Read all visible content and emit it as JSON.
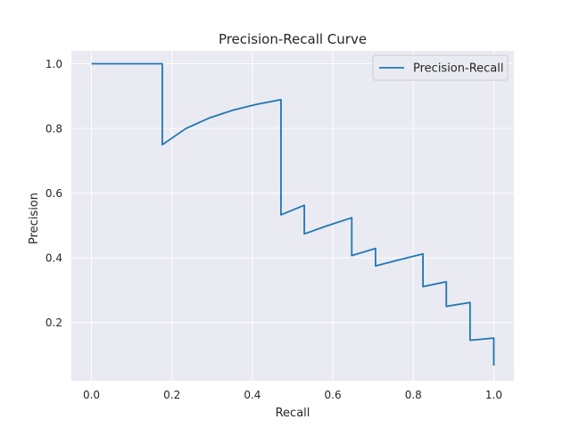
{
  "chart_data": {
    "type": "line",
    "title": "Precision-Recall Curve",
    "xlabel": "Recall",
    "ylabel": "Precision",
    "xlim": [
      -0.05,
      1.05
    ],
    "ylim": [
      0.02,
      1.04
    ],
    "xticks": [
      0.0,
      0.2,
      0.4,
      0.6,
      0.8,
      1.0
    ],
    "xtick_labels": [
      "0.0",
      "0.2",
      "0.4",
      "0.6",
      "0.8",
      "1.0"
    ],
    "yticks": [
      0.2,
      0.4,
      0.6,
      0.8,
      1.0
    ],
    "ytick_labels": [
      "0.2",
      "0.4",
      "0.6",
      "0.8",
      "1.0"
    ],
    "grid": true,
    "legend": "upper-right",
    "colors": {
      "plot_background": "#eaeaf2",
      "grid": "#ffffff",
      "line": "#1f77b4"
    },
    "series": [
      {
        "name": "Precision-Recall",
        "x": [
          0.0,
          0.176,
          0.176,
          0.235,
          0.294,
          0.353,
          0.412,
          0.471,
          0.471,
          0.529,
          0.529,
          0.588,
          0.647,
          0.647,
          0.706,
          0.706,
          0.765,
          0.824,
          0.824,
          0.882,
          0.882,
          0.941,
          0.941,
          1.0,
          1.0
        ],
        "y": [
          1.0,
          1.0,
          0.75,
          0.8,
          0.833,
          0.857,
          0.875,
          0.889,
          0.533,
          0.5625,
          0.474,
          0.5,
          0.524,
          0.407,
          0.429,
          0.375,
          0.394,
          0.412,
          0.311,
          0.326,
          0.25,
          0.262,
          0.145,
          0.152,
          0.067
        ]
      }
    ]
  }
}
